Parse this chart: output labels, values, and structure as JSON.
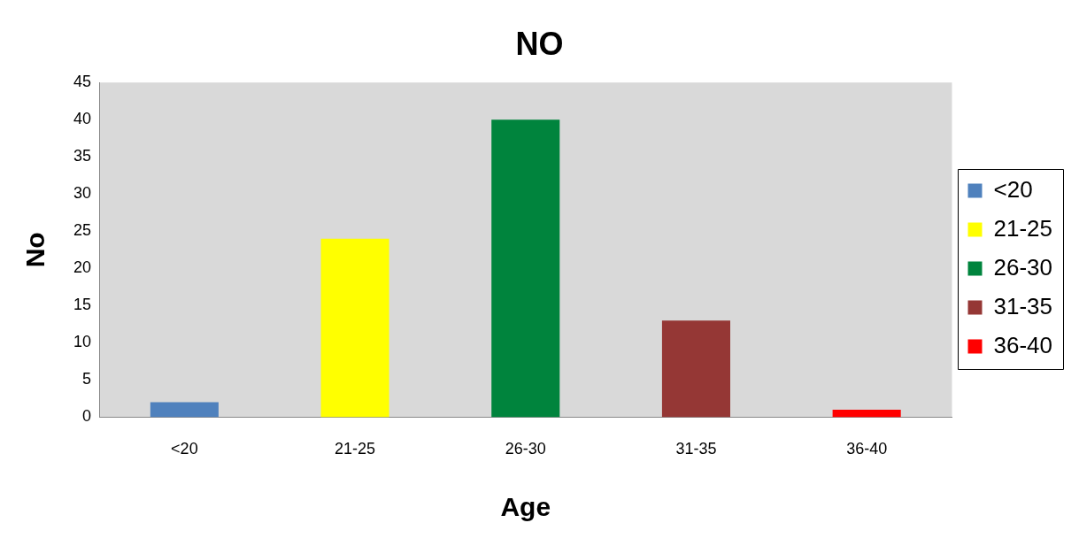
{
  "chart_data": {
    "type": "bar",
    "title": "NO",
    "xlabel": "Age",
    "ylabel": "No",
    "categories": [
      "<20",
      "21-25",
      "26-30",
      "31-35",
      "36-40"
    ],
    "series": [
      {
        "name": "<20",
        "color": "#4f81bd",
        "values": [
          2,
          null,
          null,
          null,
          null
        ]
      },
      {
        "name": "21-25",
        "color": "#ffff00",
        "values": [
          null,
          24,
          null,
          null,
          null
        ]
      },
      {
        "name": "26-30",
        "color": "#00843d",
        "values": [
          null,
          null,
          40,
          null,
          null
        ]
      },
      {
        "name": "31-35",
        "color": "#953735",
        "values": [
          null,
          null,
          null,
          13,
          null
        ]
      },
      {
        "name": "36-40",
        "color": "#ff0000",
        "values": [
          null,
          null,
          null,
          null,
          1
        ]
      }
    ],
    "ylim": [
      0,
      45
    ],
    "yticks": [
      0,
      5,
      10,
      15,
      20,
      25,
      30,
      35,
      40,
      45
    ],
    "legend": "right"
  }
}
